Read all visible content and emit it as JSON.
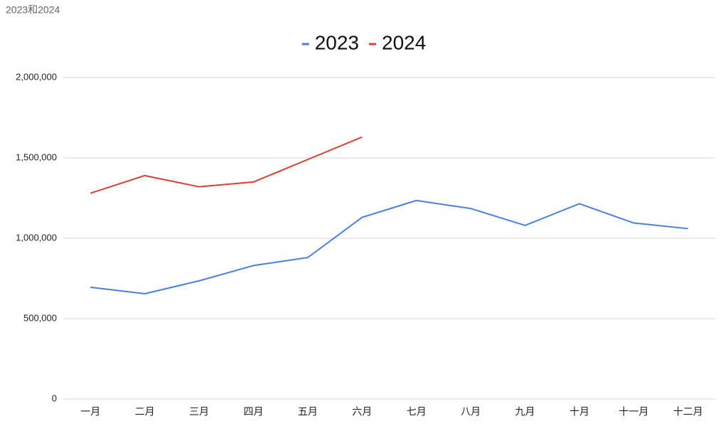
{
  "page_label": "2023和2024",
  "chart_data": {
    "type": "line",
    "categories": [
      "一月",
      "二月",
      "三月",
      "四月",
      "五月",
      "六月",
      "七月",
      "八月",
      "九月",
      "十月",
      "十一月",
      "十二月"
    ],
    "series": [
      {
        "name": "2023",
        "color": "#4a7ee8",
        "values": [
          695000,
          655000,
          735000,
          830000,
          880000,
          1130000,
          1235000,
          1185000,
          1080000,
          1215000,
          1095000,
          1060000
        ]
      },
      {
        "name": "2024",
        "color": "#e03c32",
        "values": [
          1280000,
          1390000,
          1320000,
          1350000,
          1490000,
          1630000,
          null,
          null,
          null,
          null,
          null,
          null
        ]
      }
    ],
    "ylim": [
      0,
      2000000
    ],
    "yticks": [
      0,
      {
        "value": 500000,
        "label": "500,000"
      },
      {
        "value": 1000000,
        "label": "1,000,000"
      },
      {
        "value": 1500000,
        "label": "1,500,000"
      },
      {
        "value": 2000000,
        "label": "2,000,000"
      }
    ],
    "grid": true,
    "legend": "top"
  }
}
